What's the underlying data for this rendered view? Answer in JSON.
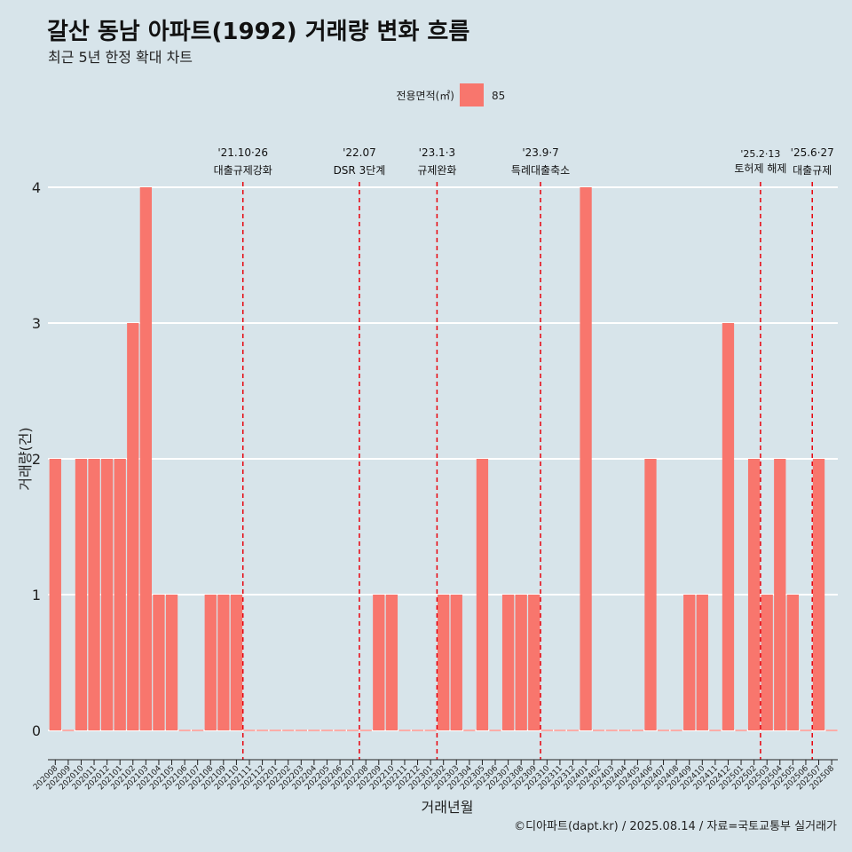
{
  "chart_data": {
    "type": "bar",
    "title": "갈산 동남 아파트(1992) 거래량 변화 흐름",
    "subtitle": "최근 5년 한정 확대 차트",
    "xlabel": "거래년월",
    "ylabel": "거래량(건)",
    "ylim": [
      0,
      4
    ],
    "yticks": [
      "0",
      "1",
      "2",
      "3",
      "4"
    ],
    "grid": true,
    "legend": {
      "title": "전용면적(㎡)",
      "placement": "top",
      "entries": [
        "85"
      ]
    },
    "bar_color": "#f8766d",
    "background_color": "#d7e4ea",
    "annotation_color": "#e8000b",
    "categories": [
      "202008",
      "202009",
      "202010",
      "202011",
      "202012",
      "202101",
      "202102",
      "202103",
      "202104",
      "202105",
      "202106",
      "202107",
      "202108",
      "202109",
      "202110",
      "202111",
      "202112",
      "202201",
      "202202",
      "202203",
      "202204",
      "202205",
      "202206",
      "202207",
      "202208",
      "202209",
      "202210",
      "202211",
      "202212",
      "202301",
      "202302",
      "202303",
      "202304",
      "202305",
      "202306",
      "202307",
      "202308",
      "202309",
      "202310",
      "202311",
      "202312",
      "202401",
      "202402",
      "202403",
      "202404",
      "202405",
      "202406",
      "202407",
      "202408",
      "202409",
      "202410",
      "202411",
      "202412",
      "202501",
      "202502",
      "202503",
      "202504",
      "202505",
      "202506",
      "202507",
      "202508"
    ],
    "series": [
      {
        "name": "85",
        "values": [
          2,
          0,
          2,
          2,
          2,
          2,
          3,
          4,
          1,
          1,
          0,
          0,
          1,
          1,
          1,
          0,
          0,
          0,
          0,
          0,
          0,
          0,
          0,
          0,
          0,
          1,
          1,
          0,
          0,
          0,
          1,
          1,
          0,
          2,
          0,
          1,
          1,
          1,
          0,
          0,
          0,
          4,
          0,
          0,
          0,
          0,
          2,
          0,
          0,
          1,
          1,
          0,
          3,
          0,
          2,
          1,
          2,
          1,
          0,
          2,
          0
        ]
      }
    ],
    "zero_bars": [
      1,
      10,
      11,
      15,
      16,
      17,
      18,
      19,
      20,
      21,
      22,
      23,
      24,
      27,
      28,
      29,
      32,
      34,
      38,
      39,
      40,
      42,
      43,
      44,
      45,
      47,
      48,
      51,
      53,
      58,
      60
    ],
    "annotations": [
      {
        "date_label": "'21.10·26",
        "text": "대출규제강화",
        "x_month": "202110"
      },
      {
        "date_label": "'22.07",
        "text": "DSR 3단계",
        "x_month": "202207"
      },
      {
        "date_label": "'23.1·3",
        "text": "규제완화",
        "x_month": "202301"
      },
      {
        "date_label": "'23.9·7",
        "text": "특례대출축소",
        "x_month": "202309"
      },
      {
        "date_label": "'25.2·13",
        "text": "토허제 해제",
        "x_month": "202502"
      },
      {
        "date_label": "'25.6·27",
        "text": "대출규제",
        "x_month": "202506"
      }
    ]
  },
  "caption": "©디아파트(dapt.kr) / 2025.08.14 / 자료=국토교통부 실거래가"
}
